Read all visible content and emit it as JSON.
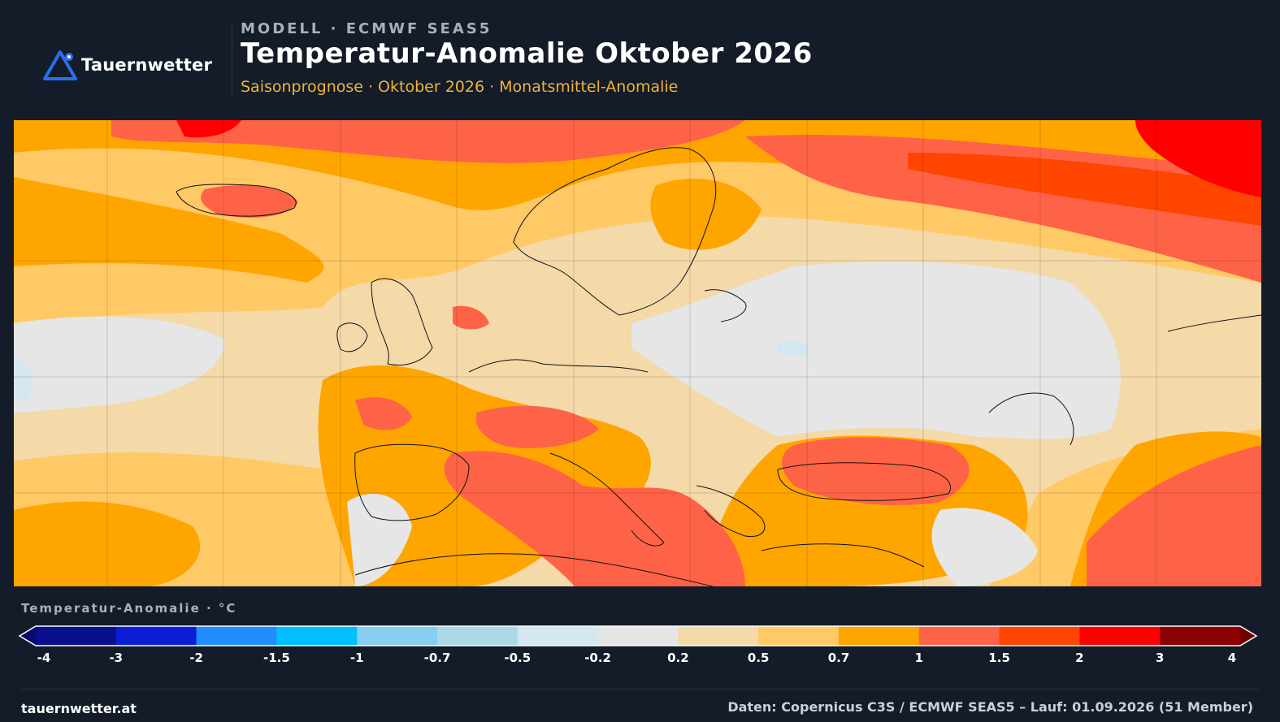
{
  "brand": {
    "name": "Tauernwetter",
    "logo_icon": "mountain-triangle-icon"
  },
  "header": {
    "kicker": "MODELL · ECMWF SEAS5",
    "title": "Temperatur-Anomalie Oktober 2026",
    "subtitle": "Saisonprognose · Oktober 2026 · Monatsmittel-Anomalie"
  },
  "legend": {
    "title": "Temperatur-Anomalie · °C",
    "ticks": [
      "-4",
      "-3",
      "-2",
      "-1.5",
      "-1",
      "-0.7",
      "-0.5",
      "-0.2",
      "0.2",
      "0.5",
      "0.7",
      "1",
      "1.5",
      "2",
      "3",
      "4"
    ],
    "colors": [
      "#0a0f8c",
      "#0a1ed6",
      "#1f8cff",
      "#00bfff",
      "#87cef0",
      "#add8e6",
      "#d3e8f0",
      "#e6e6e6",
      "#f4d9a9",
      "#ffc966",
      "#ffa500",
      "#ff6347",
      "#ff4500",
      "#ff0000",
      "#8b0000"
    ],
    "under_color": "#080a6e",
    "over_color": "#6e0000"
  },
  "colors": {
    "background": "#131c28",
    "accent": "#f0b43c",
    "brand_blue": "#2b6df0"
  },
  "footer": {
    "site": "tauernwetter.at",
    "source": "Daten: Copernicus C3S / ECMWF SEAS5 – Lauf: 01.09.2026 (51 Member)"
  }
}
